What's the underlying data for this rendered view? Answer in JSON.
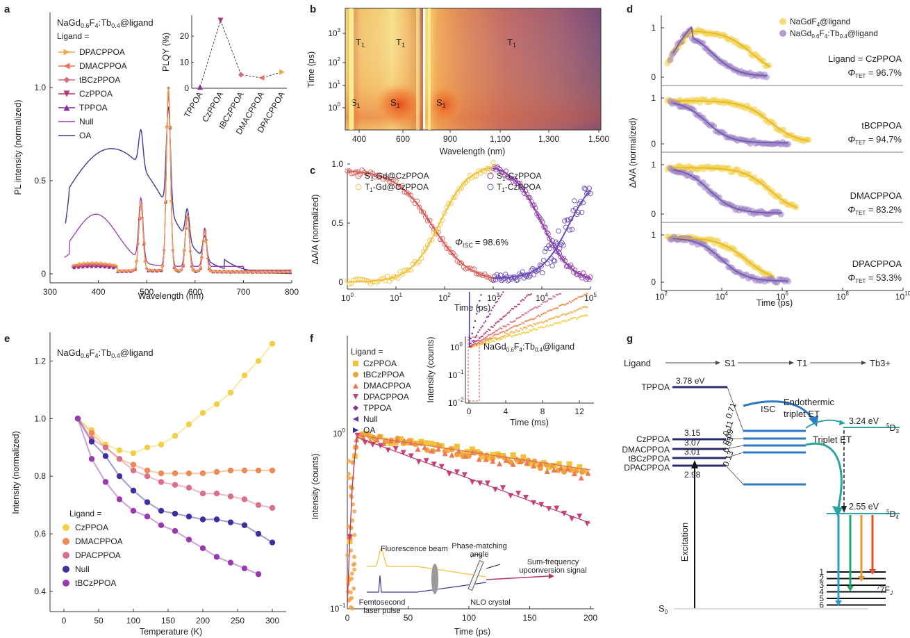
{
  "panels": {
    "a": "a",
    "b": "b",
    "c": "c",
    "d": "d",
    "e": "e",
    "f": "f",
    "g": "g"
  },
  "colors": {
    "CzPPOA": "#f2cf45",
    "DMACPPOA": "#ee8a55",
    "DPACPPOA": "#d9708a",
    "tBCzPPOA": "#a03fa6",
    "TPPOA": "#8e2f95",
    "Null": "#9a3ab0",
    "OA": "#3d3a99",
    "purple_fit": "#9a7ec4",
    "red_fit": "#d85a56"
  },
  "chart_data": [
    {
      "id": "a",
      "type": "line",
      "title_main": "NaGd",
      "title_parts": [
        "NaGd",
        "0.6",
        "F",
        "4",
        ":Tb",
        "0.4",
        "@ligand"
      ],
      "legend_title": "Ligand =",
      "xlabel": "Wavelength (nm)",
      "ylabel": "PL intensity (normalized)",
      "xlim": [
        300,
        800
      ],
      "ylim": [
        -0.02,
        1.05
      ],
      "xticks": [
        "300",
        "400",
        "500",
        "600",
        "700",
        "800"
      ],
      "yticks": [
        "0",
        "0.5",
        "1.0"
      ],
      "series": [
        {
          "name": "DPACPPOA",
          "marker": "tri-right",
          "color": "#f0a64a"
        },
        {
          "name": "DMACPPOA",
          "marker": "tri-left",
          "color": "#e8745a"
        },
        {
          "name": "tBCzPPOA",
          "marker": "diamond",
          "color": "#d86a7c"
        },
        {
          "name": "CzPPOA",
          "marker": "tri-down",
          "color": "#b5376e"
        },
        {
          "name": "TPPOA",
          "marker": "tri-up",
          "color": "#8e2f95"
        },
        {
          "name": "Null",
          "marker": "line",
          "color": "#9a3ab0"
        },
        {
          "name": "OA",
          "marker": "line",
          "color": "#3d3a99"
        }
      ],
      "inset": {
        "type": "scatter",
        "ylabel": "PLQY (%)",
        "ylim": [
          0,
          28
        ],
        "yticks": [
          "0",
          "10",
          "20"
        ],
        "categories": [
          "TPPOA",
          "CzPPOA",
          "tBCzPPOA",
          "DMACPPOA",
          "DPACPPOA"
        ],
        "values": [
          0.5,
          26,
          5.2,
          4,
          6.2
        ]
      }
    },
    {
      "id": "b",
      "type": "heatmap",
      "xlabel": "Wavelength (nm)",
      "ylabel": "Time (ps)",
      "xticks": [
        "400",
        "600",
        "900",
        "1,100",
        "1,300",
        "1,500"
      ],
      "yticks_exp": [
        "0",
        "1",
        "2",
        "3"
      ],
      "labels": [
        "T1",
        "T1",
        "T1",
        "S1",
        "S1",
        "S1"
      ]
    },
    {
      "id": "c",
      "type": "scatter",
      "xlabel": "Time (ps)",
      "ylabel": "ΔA/A (normalized)",
      "xlim_log10": [
        0,
        5
      ],
      "ylim": [
        -0.05,
        1.1
      ],
      "yticks": [
        "0",
        "0.5",
        "1.0"
      ],
      "xticks_exp": [
        "0",
        "1",
        "2",
        "3",
        "4",
        "5"
      ],
      "legend": [
        "S1-Gd@CzPPOA",
        "T1-Gd@CzPPOA",
        "S1-CzPPOA",
        "T1-CzPPOA"
      ],
      "annotation_sym": "Φ",
      "annotation_sub": "ISC",
      "annotation_val": "= 98.6%"
    },
    {
      "id": "d",
      "type": "scatter",
      "xlabel": "Time (ps)",
      "ylabel": "ΔA/A (normalized)",
      "xticks_exp": [
        "2",
        "4",
        "6",
        "8",
        "10"
      ],
      "legend": [
        "NaGdF4@ligand",
        "NaGd0.6F4:Tb0.4@ligand"
      ],
      "subpanels": [
        {
          "ligand": "Ligand = CzPPOA",
          "phi": "96.7%"
        },
        {
          "ligand": "tBCPPOA",
          "phi": "94.7%"
        },
        {
          "ligand": "DMACPPOA",
          "phi": "83.2%"
        },
        {
          "ligand": "DPACPPOA",
          "phi": "53.3%"
        }
      ]
    },
    {
      "id": "e",
      "type": "scatter",
      "xlabel": "Temperature (K)",
      "ylabel": "Intensity (normalized)",
      "xlim": [
        -20,
        320
      ],
      "ylim": [
        0.33,
        1.3
      ],
      "xticks": [
        "0",
        "50",
        "100",
        "150",
        "200",
        "250",
        "300"
      ],
      "yticks": [
        "0.4",
        "0.6",
        "0.8",
        "1.0",
        "1.2"
      ],
      "legend_title": "Ligand =",
      "x": [
        20,
        40,
        60,
        80,
        100,
        120,
        140,
        160,
        180,
        200,
        220,
        240,
        260,
        280,
        300
      ],
      "series": [
        {
          "name": "CzPPOA",
          "values": [
            1.0,
            0.96,
            0.91,
            0.89,
            0.88,
            0.9,
            0.91,
            0.94,
            0.98,
            1.02,
            1.05,
            1.09,
            1.15,
            1.2,
            1.26
          ]
        },
        {
          "name": "DMACPPOA",
          "values": [
            1.0,
            0.95,
            0.9,
            0.86,
            0.84,
            0.82,
            0.81,
            0.81,
            0.81,
            0.81,
            0.815,
            0.82,
            0.82,
            0.82,
            0.82
          ]
        },
        {
          "name": "DPACPPOA",
          "values": [
            1.0,
            0.93,
            0.9,
            0.86,
            0.82,
            0.8,
            0.78,
            0.77,
            0.76,
            0.74,
            0.74,
            0.73,
            0.72,
            0.7,
            0.69
          ]
        },
        {
          "name": "Null",
          "values": [
            1.0,
            0.92,
            0.87,
            0.8,
            0.75,
            0.71,
            0.68,
            0.67,
            0.66,
            0.65,
            0.65,
            0.64,
            0.63,
            0.6,
            0.57
          ]
        },
        {
          "name": "tBCzPPOA",
          "values": [
            1.0,
            0.86,
            0.78,
            0.72,
            0.68,
            0.66,
            0.63,
            0.61,
            0.58,
            0.55,
            0.52,
            0.5,
            0.48,
            0.46,
            null
          ]
        }
      ]
    },
    {
      "id": "f",
      "type": "scatter",
      "xlabel": "Time (ps)",
      "ylabel": "Intensity (counts)",
      "xlim": [
        0,
        200
      ],
      "xticks": [
        "0",
        "50",
        "100",
        "150",
        "200"
      ],
      "legend_title": "Ligand =",
      "legend": [
        "CzPPOA",
        "tBCzPPOA",
        "DMACPPOA",
        "DPACPPOA",
        "TPPOA",
        "Null",
        "OA"
      ],
      "inset": {
        "xlabel": "Time (ms)",
        "ylabel": "Intensity (counts)",
        "xticks": [
          "0",
          "4",
          "8",
          "12"
        ]
      },
      "schematic": [
        "Fluorescence beam",
        "Phase-matching",
        "angle",
        "Sum-frequency",
        "upconversion signal",
        "Femtosecond",
        "laser pulse",
        "NLO crystal"
      ]
    },
    {
      "id": "g",
      "type": "diagram",
      "header": [
        "Ligand",
        "S1",
        "T1",
        "Tb3+"
      ],
      "levels": [
        {
          "name": "TPPOA",
          "energy": "3.78 eV"
        },
        {
          "name": "CzPPOA",
          "energy": "3.15"
        },
        {
          "name": "DMACPPOA",
          "energy": "3.07"
        },
        {
          "name": "tBCzPPOA",
          "energy": "3.01"
        },
        {
          "name": "DPACPPOA",
          "energy": "2.98"
        }
      ],
      "labels": {
        "isc": "ISC",
        "endo1": "Endothermic",
        "endo2": "triplet ET",
        "tet": "Triplet ET",
        "excitation": "Excitation",
        "d3": "3.24 eV",
        "d4": "2.55 eV",
        "s0": "S0",
        "f": "7F"
      },
      "rates": [
        "0.71",
        "0.11",
        "0.09",
        "0.03",
        "0.13"
      ],
      "fj": [
        "1",
        "2",
        "3",
        "4",
        "5",
        "6"
      ]
    }
  ]
}
